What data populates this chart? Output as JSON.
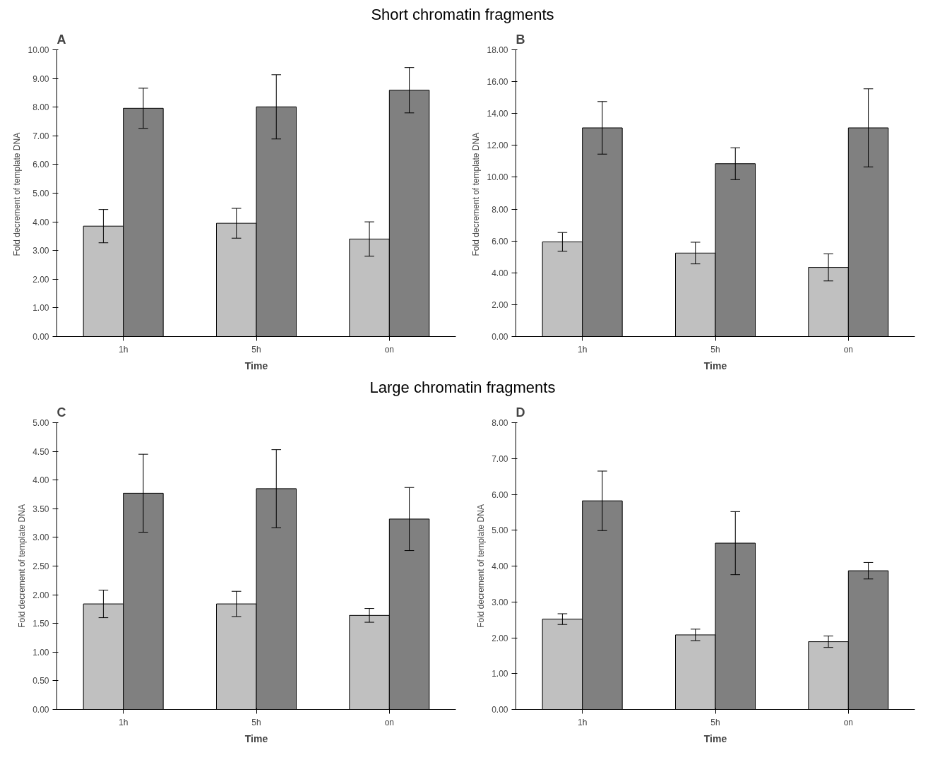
{
  "chart_data": [
    {
      "type": "bar",
      "title": "A",
      "annotations": [
        "Short chromatin fragments"
      ],
      "xlabel": "Time",
      "ylabel": "Fold decrement  of template DNA",
      "categories": [
        "1h",
        "5h",
        "on"
      ],
      "ylim": [
        0,
        10
      ],
      "yticks": [
        {
          "value": 0,
          "label": "0.00"
        },
        {
          "value": 1,
          "label": "1.00"
        },
        {
          "value": 2,
          "label": "2.00"
        },
        {
          "value": 3,
          "label": "3.00"
        },
        {
          "value": 4,
          "label": "4.00"
        },
        {
          "value": 5,
          "label": "5.00"
        },
        {
          "value": 6,
          "label": "6.00"
        },
        {
          "value": 7,
          "label": "7.00"
        },
        {
          "value": 8,
          "label": "8.00"
        },
        {
          "value": 9,
          "label": "9.00"
        },
        {
          "value": 10,
          "label": "10.00"
        }
      ],
      "grid": false,
      "series": [
        {
          "color": "#c0c0c0",
          "values": [
            3.85,
            3.95,
            3.4
          ],
          "errors": [
            0.58,
            0.52,
            0.6
          ]
        },
        {
          "color": "#808080",
          "values": [
            7.96,
            8.01,
            8.59
          ],
          "errors": [
            0.7,
            1.12,
            0.79
          ]
        }
      ]
    },
    {
      "type": "bar",
      "title": "B",
      "xlabel": "Time",
      "ylabel": "Fold decrement  of template DNA",
      "categories": [
        "1h",
        "5h",
        "on"
      ],
      "ylim": [
        0,
        18
      ],
      "yticks": [
        {
          "value": 0,
          "label": "0.00"
        },
        {
          "value": 2,
          "label": "2.00"
        },
        {
          "value": 4,
          "label": "4.00"
        },
        {
          "value": 6,
          "label": "6.00"
        },
        {
          "value": 8,
          "label": "8.00"
        },
        {
          "value": 10,
          "label": "10.00"
        },
        {
          "value": 12,
          "label": "12.00"
        },
        {
          "value": 14,
          "label": "14.00"
        },
        {
          "value": 16,
          "label": "16.00"
        },
        {
          "value": 18,
          "label": "18.00"
        }
      ],
      "grid": false,
      "series": [
        {
          "color": "#c0c0c0",
          "values": [
            5.94,
            5.24,
            4.34
          ],
          "errors": [
            0.59,
            0.68,
            0.85
          ]
        },
        {
          "color": "#808080",
          "values": [
            13.1,
            10.85,
            13.1
          ],
          "errors": [
            1.65,
            1.0,
            2.45
          ]
        }
      ]
    },
    {
      "type": "bar",
      "title": "C",
      "annotations": [
        "Large chromatin fragments"
      ],
      "xlabel": "Time",
      "ylabel": "Fold decrement of template DNA",
      "categories": [
        "1h",
        "5h",
        "on"
      ],
      "ylim": [
        0,
        5
      ],
      "yticks": [
        {
          "value": 0,
          "label": "0.00"
        },
        {
          "value": 0.5,
          "label": "0.50"
        },
        {
          "value": 1,
          "label": "1.00"
        },
        {
          "value": 1.5,
          "label": "1.50"
        },
        {
          "value": 2,
          "label": "2.00"
        },
        {
          "value": 2.5,
          "label": "2.50"
        },
        {
          "value": 3,
          "label": "3.00"
        },
        {
          "value": 3.5,
          "label": "3.50"
        },
        {
          "value": 4,
          "label": "4.00"
        },
        {
          "value": 4.5,
          "label": "4.50"
        },
        {
          "value": 5,
          "label": "5.00"
        }
      ],
      "grid": false,
      "series": [
        {
          "color": "#c0c0c0",
          "values": [
            1.84,
            1.84,
            1.64
          ],
          "errors": [
            0.24,
            0.22,
            0.12
          ]
        },
        {
          "color": "#808080",
          "values": [
            3.77,
            3.85,
            3.32
          ],
          "errors": [
            0.68,
            0.68,
            0.55
          ]
        }
      ]
    },
    {
      "type": "bar",
      "title": "D",
      "xlabel": "Time",
      "ylabel": "Fold decrement of template DNA",
      "categories": [
        "1h",
        "5h",
        "on"
      ],
      "ylim": [
        0,
        8
      ],
      "yticks": [
        {
          "value": 0,
          "label": "0.00"
        },
        {
          "value": 1,
          "label": "1.00"
        },
        {
          "value": 2,
          "label": "2.00"
        },
        {
          "value": 3,
          "label": "3.00"
        },
        {
          "value": 4,
          "label": "4.00"
        },
        {
          "value": 5,
          "label": "5.00"
        },
        {
          "value": 6,
          "label": "6.00"
        },
        {
          "value": 7,
          "label": "7.00"
        },
        {
          "value": 8,
          "label": "8.00"
        }
      ],
      "grid": false,
      "series": [
        {
          "color": "#c0c0c0",
          "values": [
            2.52,
            2.08,
            1.89
          ],
          "errors": [
            0.15,
            0.16,
            0.16
          ]
        },
        {
          "color": "#808080",
          "values": [
            5.82,
            4.64,
            3.87
          ],
          "errors": [
            0.83,
            0.88,
            0.23
          ]
        }
      ]
    }
  ]
}
